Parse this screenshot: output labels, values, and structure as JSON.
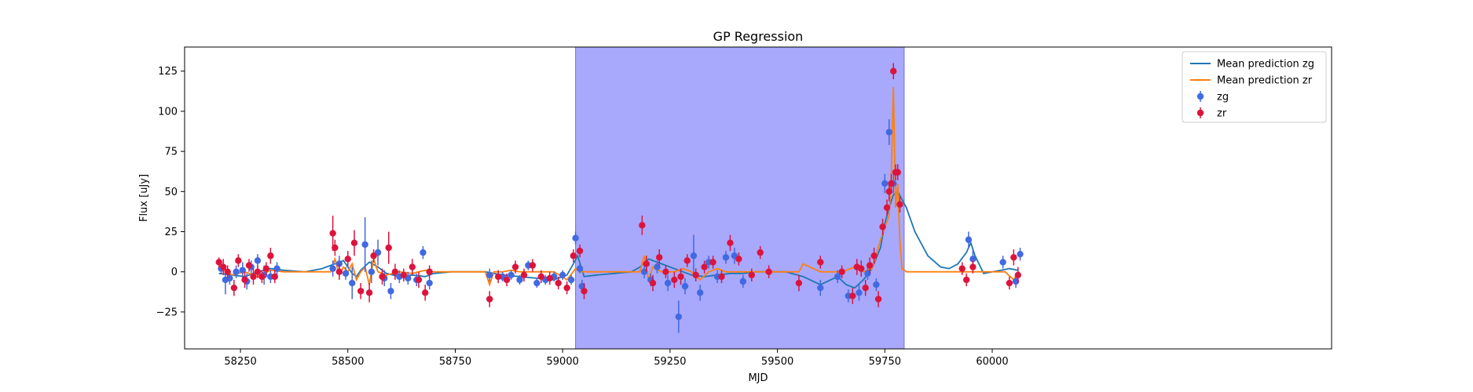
{
  "chart_data": {
    "type": "scatter",
    "title": "GP Regression",
    "xlabel": "MJD",
    "ylabel": "Flux [uJy]",
    "xlim": [
      58120,
      60790
    ],
    "ylim": [
      -48,
      140
    ],
    "xticks": [
      58250,
      58500,
      58750,
      59000,
      59250,
      59500,
      59750,
      60000
    ],
    "yticks": [
      -25,
      0,
      25,
      50,
      75,
      100,
      125
    ],
    "grid": false,
    "legend_position": "top-right",
    "shaded_region": {
      "x_start": 59030,
      "x_end": 59795,
      "color": "#a8a8fc"
    },
    "series": [
      {
        "name": "Mean prediction zg",
        "kind": "line",
        "color": "#1f77b4",
        "x": [
          58200,
          58230,
          58260,
          58290,
          58320,
          58350,
          58400,
          58440,
          58470,
          58490,
          58500,
          58510,
          58520,
          58530,
          58550,
          58570,
          58590,
          58620,
          58650,
          58680,
          58700,
          58740,
          58780,
          58820,
          58860,
          58900,
          58940,
          58980,
          59010,
          59025,
          59035,
          59050,
          59080,
          59120,
          59160,
          59180,
          59200,
          59230,
          59260,
          59280,
          59300,
          59330,
          59360,
          59390,
          59420,
          59450,
          59480,
          59520,
          59560,
          59600,
          59640,
          59660,
          59680,
          59700,
          59720,
          59740,
          59750,
          59760,
          59770,
          59780,
          59790,
          59800,
          59820,
          59850,
          59880,
          59900,
          59920,
          59940,
          59950,
          59960,
          59980,
          60000,
          60020,
          60040,
          60060
        ],
        "y": [
          -1,
          -2,
          -3,
          0,
          2,
          1,
          0,
          2,
          5,
          7,
          3,
          -1,
          -3,
          1,
          6,
          3,
          -1,
          -3,
          -2,
          -3,
          -1,
          0,
          0,
          0,
          -2,
          -3,
          -4,
          -5,
          -2,
          5,
          10,
          -3,
          -2,
          -1,
          0,
          3,
          8,
          5,
          2,
          0,
          -2,
          -3,
          -2,
          -1,
          -1,
          0,
          0,
          0,
          -3,
          -8,
          -3,
          -8,
          -10,
          -5,
          2,
          15,
          30,
          40,
          48,
          50,
          45,
          40,
          25,
          10,
          3,
          2,
          5,
          12,
          18,
          10,
          -1,
          0,
          1,
          2,
          1
        ]
      },
      {
        "name": "Mean prediction zr",
        "kind": "line",
        "color": "#ff7f0e",
        "x": [
          58200,
          58230,
          58260,
          58290,
          58320,
          58350,
          58400,
          58460,
          58470,
          58480,
          58490,
          58500,
          58510,
          58520,
          58530,
          58540,
          58550,
          58560,
          58570,
          58590,
          58620,
          58650,
          58680,
          58700,
          58740,
          58780,
          58820,
          58830,
          58840,
          58860,
          58880,
          58900,
          58940,
          58980,
          59010,
          59030,
          59040,
          59050,
          59080,
          59150,
          59180,
          59190,
          59200,
          59210,
          59230,
          59260,
          59280,
          59300,
          59320,
          59340,
          59360,
          59380,
          59400,
          59420,
          59500,
          59550,
          59560,
          59600,
          59650,
          59680,
          59700,
          59720,
          59730,
          59740,
          59750,
          59760,
          59765,
          59770,
          59775,
          59780,
          59785,
          59790,
          59800,
          59850,
          59900,
          59930,
          59940,
          59950,
          59960,
          60000,
          60030,
          60050,
          60060
        ],
        "y": [
          3,
          -2,
          0,
          -3,
          1,
          0,
          0,
          0,
          8,
          -2,
          3,
          0,
          5,
          -5,
          0,
          3,
          -8,
          8,
          0,
          -2,
          0,
          -1,
          1,
          0,
          0,
          0,
          0,
          -8,
          0,
          0,
          1,
          0,
          0,
          0,
          -5,
          2,
          0,
          0,
          0,
          0,
          0,
          10,
          -5,
          3,
          0,
          0,
          2,
          0,
          -5,
          0,
          2,
          0,
          0,
          0,
          0,
          0,
          5,
          0,
          0,
          3,
          0,
          2,
          10,
          20,
          28,
          35,
          60,
          115,
          40,
          55,
          20,
          2,
          0,
          0,
          0,
          0,
          0,
          0,
          0,
          0,
          0,
          -5,
          0
        ]
      },
      {
        "name": "zg",
        "kind": "errorbar",
        "color": "#4169e1",
        "x": [
          58205,
          58215,
          58225,
          58240,
          58255,
          58265,
          58275,
          58290,
          58305,
          58320,
          58335,
          58465,
          58480,
          58495,
          58510,
          58540,
          58555,
          58570,
          58585,
          58600,
          58620,
          58640,
          58660,
          58675,
          58690,
          58830,
          58860,
          58880,
          58900,
          58920,
          58940,
          58960,
          58980,
          59000,
          59020,
          59030,
          59040,
          59045,
          59190,
          59205,
          59220,
          59245,
          59270,
          59285,
          59305,
          59320,
          59340,
          59360,
          59380,
          59400,
          59420,
          59600,
          59640,
          59665,
          59690,
          59710,
          59730,
          59750,
          59760,
          59770,
          59945,
          59955,
          60025,
          60055,
          60065
        ],
        "y": [
          2,
          -5,
          -4,
          0,
          1,
          -6,
          3,
          7,
          -2,
          -3,
          2,
          2,
          5,
          -1,
          -7,
          17,
          0,
          12,
          -4,
          -12,
          -3,
          -4,
          -5,
          12,
          -7,
          -2,
          -3,
          -2,
          -5,
          4,
          -7,
          -5,
          -3,
          -2,
          -5,
          21,
          2,
          -9,
          0,
          -5,
          3,
          -7,
          -28,
          -9,
          10,
          -13,
          6,
          -3,
          9,
          10,
          -6,
          -10,
          -3,
          -15,
          -13,
          -1,
          -8,
          55,
          87,
          55,
          20,
          8,
          6,
          -6,
          11
        ],
        "err": [
          3,
          9,
          4,
          4,
          5,
          5,
          4,
          4,
          6,
          4,
          4,
          5,
          5,
          4,
          10,
          17,
          7,
          8,
          5,
          5,
          4,
          4,
          4,
          4,
          4,
          4,
          3,
          3,
          3,
          3,
          3,
          3,
          3,
          3,
          3,
          4,
          3,
          4,
          4,
          4,
          4,
          5,
          10,
          5,
          13,
          5,
          4,
          4,
          4,
          5,
          4,
          5,
          4,
          4,
          5,
          4,
          4,
          6,
          8,
          6,
          5,
          6,
          4,
          4,
          4
        ]
      },
      {
        "name": "zr",
        "kind": "errorbar",
        "color": "#dc143c",
        "x": [
          58200,
          58210,
          58220,
          58235,
          58245,
          58260,
          58270,
          58280,
          58290,
          58300,
          58310,
          58320,
          58330,
          58465,
          58470,
          58480,
          58500,
          58515,
          58530,
          58550,
          58560,
          58580,
          58595,
          58610,
          58630,
          58650,
          58665,
          58680,
          58690,
          58830,
          58850,
          58870,
          58890,
          58910,
          58930,
          58950,
          58970,
          58990,
          59010,
          59025,
          59040,
          59050,
          59185,
          59195,
          59210,
          59225,
          59240,
          59260,
          59275,
          59290,
          59310,
          59330,
          59350,
          59370,
          59390,
          59410,
          59440,
          59460,
          59480,
          59550,
          59600,
          59650,
          59675,
          59685,
          59695,
          59705,
          59715,
          59725,
          59735,
          59745,
          59755,
          59760,
          59765,
          59770,
          59775,
          59780,
          59785,
          59930,
          59940,
          59955,
          60040,
          60050,
          60060
        ],
        "y": [
          6,
          3,
          0,
          -10,
          7,
          -5,
          4,
          -3,
          0,
          -3,
          2,
          10,
          -3,
          24,
          15,
          0,
          8,
          18,
          -12,
          -13,
          10,
          -3,
          15,
          0,
          -2,
          3,
          -5,
          -13,
          0,
          -17,
          -3,
          -5,
          3,
          -2,
          4,
          -3,
          -4,
          -7,
          -10,
          10,
          13,
          -12,
          29,
          5,
          -7,
          9,
          0,
          -5,
          -3,
          7,
          -2,
          3,
          6,
          -3,
          18,
          8,
          -2,
          12,
          0,
          -7,
          6,
          0,
          -15,
          3,
          2,
          -10,
          4,
          10,
          -17,
          28,
          40,
          50,
          55,
          125,
          62,
          62,
          42,
          2,
          -5,
          3,
          -7,
          9,
          -2
        ],
        "err": [
          3,
          5,
          4,
          5,
          4,
          5,
          4,
          5,
          4,
          4,
          4,
          5,
          4,
          11,
          5,
          5,
          5,
          8,
          5,
          6,
          4,
          5,
          10,
          5,
          4,
          5,
          5,
          5,
          4,
          5,
          4,
          4,
          4,
          4,
          4,
          4,
          4,
          4,
          4,
          4,
          4,
          5,
          6,
          5,
          5,
          5,
          4,
          5,
          5,
          4,
          4,
          4,
          4,
          4,
          5,
          4,
          4,
          4,
          4,
          5,
          4,
          4,
          5,
          5,
          5,
          5,
          5,
          5,
          5,
          5,
          5,
          6,
          6,
          5,
          5,
          5,
          5,
          4,
          4,
          4,
          4,
          5,
          5
        ]
      }
    ]
  }
}
